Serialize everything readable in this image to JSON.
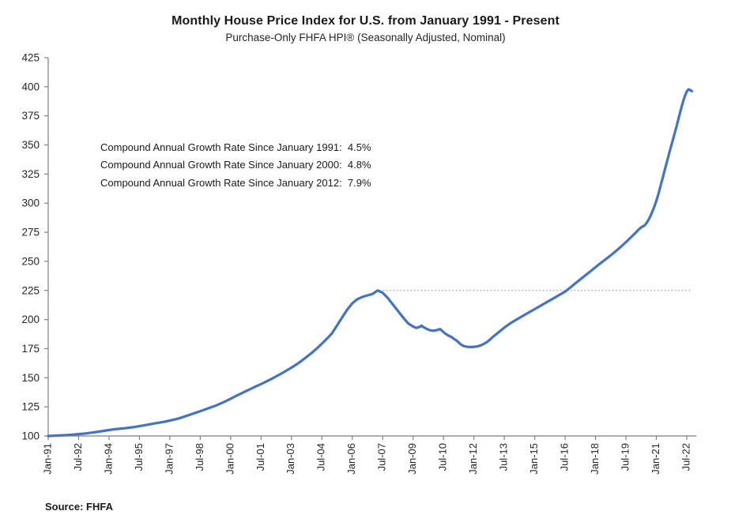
{
  "header": {
    "title": "Monthly House Price Index for U.S. from January 1991 - Present",
    "subtitle": "Purchase-Only FHFA HPI® (Seasonally Adjusted, Nominal)"
  },
  "annotations": [
    "Compound Annual Growth Rate Since January 1991:  4.5%",
    "Compound Annual Growth Rate Since January 2000:  4.8%",
    "Compound Annual Growth Rate Since January 2012:  7.9%"
  ],
  "footer": {
    "source": "Source: FHFA"
  },
  "chart_data": {
    "type": "line",
    "title": "Monthly House Price Index for U.S. from January 1991 - Present",
    "subtitle": "Purchase-Only FHFA HPI® (Seasonally Adjusted, Nominal)",
    "xlabel": "",
    "ylabel": "",
    "ylim": [
      100,
      425
    ],
    "y_ticks": [
      100,
      125,
      150,
      175,
      200,
      225,
      250,
      275,
      300,
      325,
      350,
      375,
      400,
      425
    ],
    "x_start_month": "1991-01",
    "x_tick_interval_months": 18,
    "x_tick_labels": [
      "Jan-91",
      "Jul-92",
      "Jan-94",
      "Jul-95",
      "Jan-97",
      "Jul-98",
      "Jan-00",
      "Jul-01",
      "Jan-03",
      "Jul-04",
      "Jan-06",
      "Jul-07",
      "Jan-09",
      "Jul-10",
      "Jan-12",
      "Jul-13",
      "Jan-15",
      "Jul-16",
      "Jan-18",
      "Jul-19",
      "Jan-21",
      "Jul-22"
    ],
    "grid": false,
    "legend": "none",
    "line_color": "#4472C4",
    "axis_color": "#808080",
    "tick_label_color": "#262626",
    "reference_line": {
      "value": 225,
      "start": "2007-05",
      "end": "2022-10",
      "color": "#9e9e9e",
      "style": "dotted"
    },
    "series": [
      {
        "name": "Purchase-Only FHFA HPI (Seasonally Adjusted, Nominal)",
        "points": [
          [
            "1991-01",
            100.0
          ],
          [
            "1991-04",
            100.2
          ],
          [
            "1991-07",
            100.4
          ],
          [
            "1991-10",
            100.6
          ],
          [
            "1992-01",
            100.9
          ],
          [
            "1992-04",
            101.2
          ],
          [
            "1992-07",
            101.6
          ],
          [
            "1992-10",
            102.0
          ],
          [
            "1993-01",
            102.5
          ],
          [
            "1993-04",
            103.1
          ],
          [
            "1993-07",
            103.7
          ],
          [
            "1993-10",
            104.4
          ],
          [
            "1994-01",
            105.1
          ],
          [
            "1994-04",
            105.7
          ],
          [
            "1994-07",
            106.2
          ],
          [
            "1994-10",
            106.6
          ],
          [
            "1995-01",
            107.1
          ],
          [
            "1995-04",
            107.7
          ],
          [
            "1995-07",
            108.4
          ],
          [
            "1995-10",
            109.2
          ],
          [
            "1996-01",
            110.0
          ],
          [
            "1996-04",
            110.8
          ],
          [
            "1996-07",
            111.5
          ],
          [
            "1996-10",
            112.3
          ],
          [
            "1997-01",
            113.2
          ],
          [
            "1997-04",
            114.2
          ],
          [
            "1997-07",
            115.4
          ],
          [
            "1997-10",
            116.8
          ],
          [
            "1998-01",
            118.3
          ],
          [
            "1998-04",
            119.8
          ],
          [
            "1998-07",
            121.3
          ],
          [
            "1998-10",
            122.8
          ],
          [
            "1999-01",
            124.4
          ],
          [
            "1999-04",
            126.0
          ],
          [
            "1999-07",
            127.8
          ],
          [
            "1999-10",
            129.8
          ],
          [
            "2000-01",
            132.0
          ],
          [
            "2000-04",
            134.2
          ],
          [
            "2000-07",
            136.4
          ],
          [
            "2000-10",
            138.5
          ],
          [
            "2001-01",
            140.6
          ],
          [
            "2001-04",
            142.6
          ],
          [
            "2001-07",
            144.6
          ],
          [
            "2001-10",
            146.7
          ],
          [
            "2002-01",
            148.9
          ],
          [
            "2002-04",
            151.2
          ],
          [
            "2002-07",
            153.6
          ],
          [
            "2002-10",
            156.1
          ],
          [
            "2003-01",
            158.7
          ],
          [
            "2003-04",
            161.5
          ],
          [
            "2003-07",
            164.6
          ],
          [
            "2003-10",
            167.9
          ],
          [
            "2004-01",
            171.4
          ],
          [
            "2004-04",
            175.2
          ],
          [
            "2004-07",
            179.3
          ],
          [
            "2004-10",
            183.6
          ],
          [
            "2005-01",
            188.2
          ],
          [
            "2005-04",
            195.0
          ],
          [
            "2005-07",
            201.8
          ],
          [
            "2005-10",
            208.5
          ],
          [
            "2006-01",
            214.0
          ],
          [
            "2006-04",
            217.5
          ],
          [
            "2006-07",
            219.5
          ],
          [
            "2006-10",
            220.8
          ],
          [
            "2007-01",
            222.0
          ],
          [
            "2007-04",
            225.0
          ],
          [
            "2007-07",
            223.0
          ],
          [
            "2007-10",
            218.5
          ],
          [
            "2008-01",
            213.0
          ],
          [
            "2008-04",
            207.5
          ],
          [
            "2008-07",
            202.0
          ],
          [
            "2008-10",
            196.8
          ],
          [
            "2009-01",
            194.0
          ],
          [
            "2009-03",
            192.8
          ],
          [
            "2009-05",
            193.8
          ],
          [
            "2009-06",
            194.8
          ],
          [
            "2009-07",
            193.6
          ],
          [
            "2009-09",
            192.0
          ],
          [
            "2009-11",
            190.8
          ],
          [
            "2010-01",
            190.4
          ],
          [
            "2010-03",
            190.9
          ],
          [
            "2010-05",
            191.8
          ],
          [
            "2010-06",
            190.6
          ],
          [
            "2010-08",
            188.0
          ],
          [
            "2010-10",
            186.2
          ],
          [
            "2010-12",
            184.8
          ],
          [
            "2011-01",
            183.6
          ],
          [
            "2011-03",
            181.6
          ],
          [
            "2011-05",
            178.9
          ],
          [
            "2011-07",
            177.2
          ],
          [
            "2011-09",
            176.6
          ],
          [
            "2011-11",
            176.4
          ],
          [
            "2012-01",
            176.6
          ],
          [
            "2012-03",
            176.9
          ],
          [
            "2012-05",
            177.8
          ],
          [
            "2012-07",
            179.2
          ],
          [
            "2012-09",
            181.0
          ],
          [
            "2012-11",
            183.4
          ],
          [
            "2013-01",
            186.0
          ],
          [
            "2013-04",
            189.5
          ],
          [
            "2013-07",
            193.0
          ],
          [
            "2013-10",
            196.3
          ],
          [
            "2014-01",
            199.0
          ],
          [
            "2014-04",
            201.5
          ],
          [
            "2014-07",
            204.0
          ],
          [
            "2014-10",
            206.5
          ],
          [
            "2015-01",
            209.0
          ],
          [
            "2015-04",
            211.5
          ],
          [
            "2015-07",
            214.0
          ],
          [
            "2015-10",
            216.5
          ],
          [
            "2016-01",
            219.0
          ],
          [
            "2016-04",
            221.5
          ],
          [
            "2016-07",
            224.0
          ],
          [
            "2016-10",
            227.5
          ],
          [
            "2017-01",
            231.0
          ],
          [
            "2017-04",
            234.5
          ],
          [
            "2017-07",
            238.0
          ],
          [
            "2017-10",
            241.5
          ],
          [
            "2018-01",
            245.0
          ],
          [
            "2018-04",
            248.5
          ],
          [
            "2018-07",
            251.8
          ],
          [
            "2018-10",
            255.2
          ],
          [
            "2019-01",
            258.8
          ],
          [
            "2019-04",
            262.5
          ],
          [
            "2019-07",
            266.5
          ],
          [
            "2019-10",
            270.8
          ],
          [
            "2020-01",
            275.0
          ],
          [
            "2020-02",
            276.5
          ],
          [
            "2020-03",
            278.0
          ],
          [
            "2020-04",
            279.2
          ],
          [
            "2020-05",
            280.0
          ],
          [
            "2020-06",
            280.8
          ],
          [
            "2020-07",
            282.5
          ],
          [
            "2020-08",
            284.8
          ],
          [
            "2020-09",
            287.5
          ],
          [
            "2020-10",
            290.5
          ],
          [
            "2020-11",
            294.0
          ],
          [
            "2020-12",
            297.8
          ],
          [
            "2021-01",
            302.0
          ],
          [
            "2021-02",
            306.8
          ],
          [
            "2021-03",
            312.0
          ],
          [
            "2021-04",
            317.5
          ],
          [
            "2021-05",
            323.0
          ],
          [
            "2021-06",
            328.5
          ],
          [
            "2021-07",
            334.0
          ],
          [
            "2021-08",
            339.5
          ],
          [
            "2021-09",
            345.0
          ],
          [
            "2021-10",
            350.3
          ],
          [
            "2021-11",
            355.5
          ],
          [
            "2021-12",
            360.8
          ],
          [
            "2022-01",
            366.2
          ],
          [
            "2022-02",
            371.8
          ],
          [
            "2022-03",
            377.5
          ],
          [
            "2022-04",
            383.0
          ],
          [
            "2022-05",
            388.0
          ],
          [
            "2022-06",
            392.5
          ],
          [
            "2022-07",
            395.8
          ],
          [
            "2022-08",
            397.8
          ],
          [
            "2022-09",
            397.2
          ],
          [
            "2022-10",
            396.2
          ]
        ]
      }
    ]
  }
}
